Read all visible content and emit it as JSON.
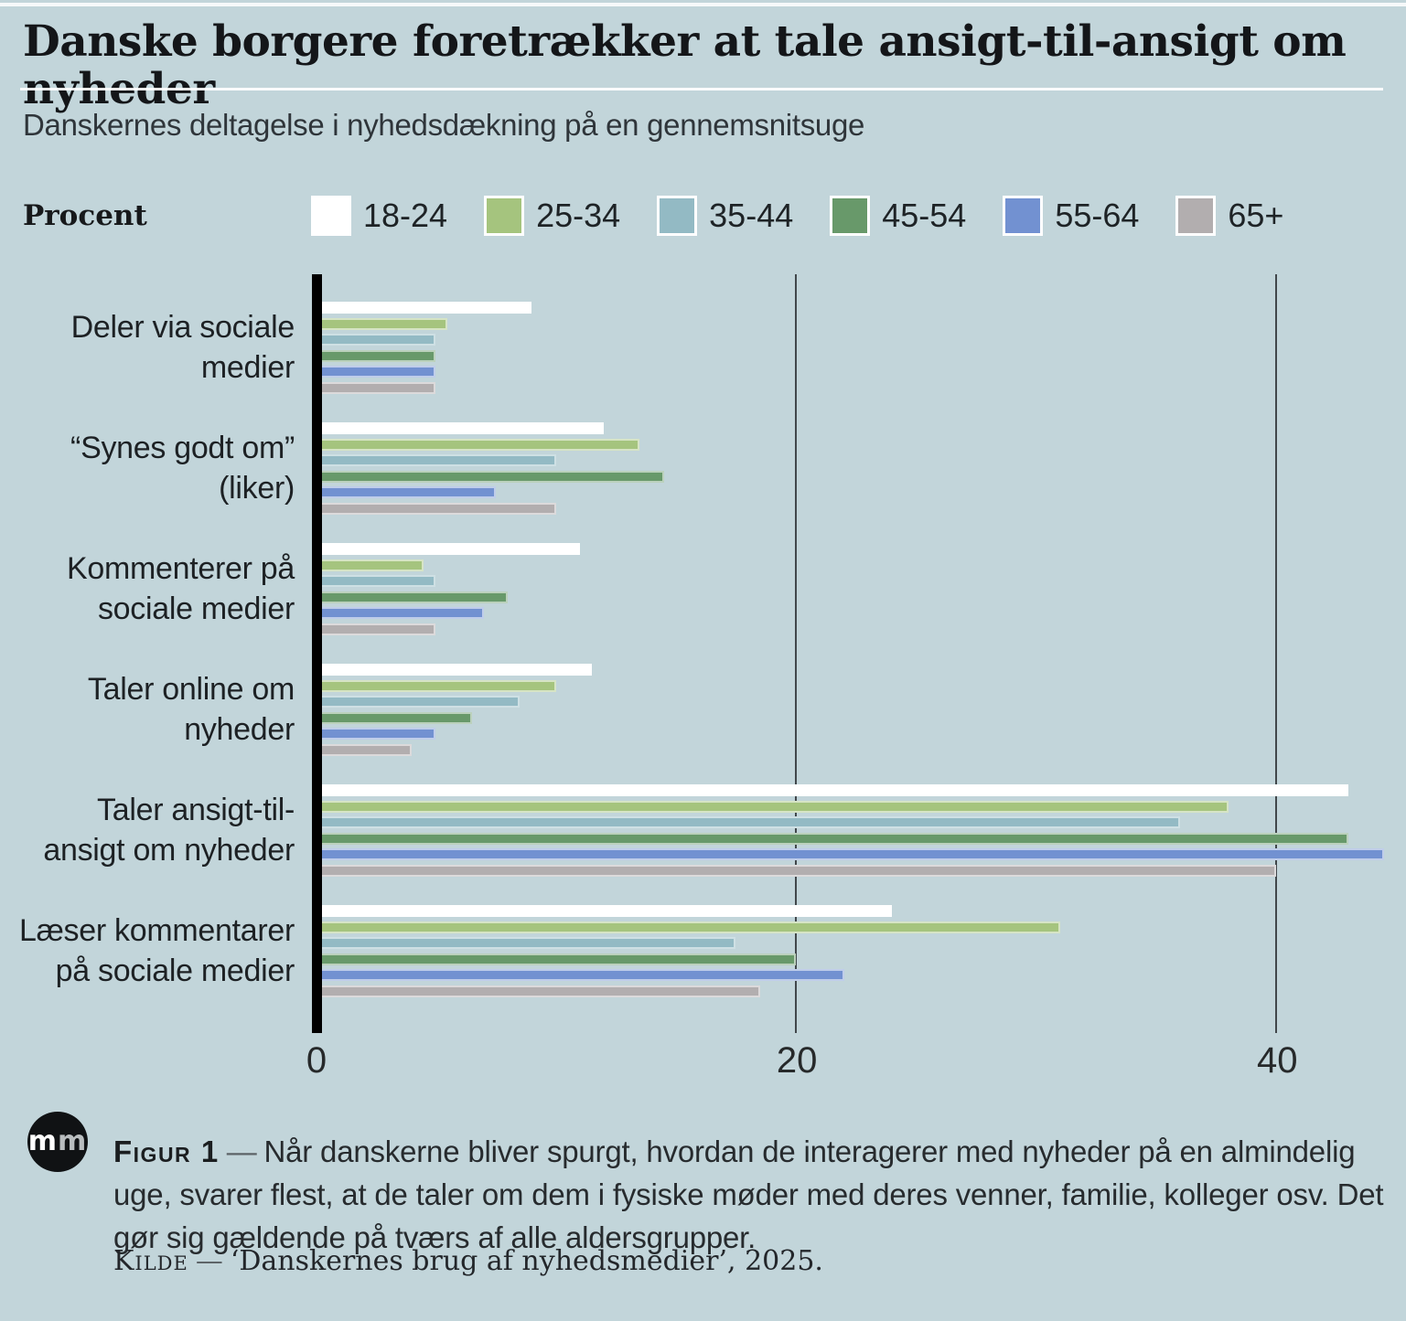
{
  "header": {
    "title": "Danske borgere foretrækker at tale ansigt-til-ansigt om nyheder",
    "subtitle": "Danskernes deltagelse i nyhedsdækning på en gennemsnitsuge"
  },
  "legend": {
    "label": "Procent",
    "groups": [
      {
        "label": "18-24",
        "color": "#ffffff"
      },
      {
        "label": "25-34",
        "color": "#a5c47e"
      },
      {
        "label": "35-44",
        "color": "#93bac4"
      },
      {
        "label": "45-54",
        "color": "#68996a"
      },
      {
        "label": "55-64",
        "color": "#7291d1"
      },
      {
        "label": "65+",
        "color": "#b2aeaf"
      }
    ]
  },
  "chart_data": {
    "type": "bar",
    "orientation": "horizontal",
    "unit": "percent",
    "title": "Danskernes deltagelse i nyhedsdækning på en gennemsnitsuge",
    "xlabel": "Procent",
    "ylabel": "",
    "xlim": [
      0,
      45.4
    ],
    "xticks": [
      0,
      20,
      40
    ],
    "grid": "vertical",
    "legend_position": "top",
    "categories": [
      [
        "Deler via sociale",
        "medier"
      ],
      [
        "“Synes godt om”",
        "(liker)"
      ],
      [
        "Kommenterer på",
        "sociale medier"
      ],
      [
        "Taler online om",
        "nyheder"
      ],
      [
        "Taler ansigt-til-",
        "ansigt om nyheder"
      ],
      [
        "Læser kommentarer",
        "på sociale medier"
      ]
    ],
    "series": [
      {
        "name": "18-24",
        "color": "#ffffff",
        "values": [
          9,
          12,
          11,
          11.5,
          43,
          24
        ]
      },
      {
        "name": "25-34",
        "color": "#a5c47e",
        "values": [
          5.5,
          13.5,
          4.5,
          10,
          38,
          31
        ]
      },
      {
        "name": "35-44",
        "color": "#93bac4",
        "values": [
          5,
          10,
          5,
          8.5,
          36,
          17.5
        ]
      },
      {
        "name": "45-54",
        "color": "#68996a",
        "values": [
          5,
          14.5,
          8,
          6.5,
          43,
          20
        ]
      },
      {
        "name": "55-64",
        "color": "#7291d1",
        "values": [
          5,
          7.5,
          7,
          5,
          44.5,
          22
        ]
      },
      {
        "name": "65+",
        "color": "#b2aeaf",
        "values": [
          5,
          10,
          5,
          4,
          40,
          18.5
        ]
      }
    ]
  },
  "footer": {
    "logo_text_1": "m",
    "logo_text_2": "m",
    "figure_label": "Figur 1",
    "dash": "—",
    "caption": "Når danskerne bliver spurgt, hvordan de interagerer med nyheder på en almindelig uge, svarer flest, at de taler om dem i fysiske møder med deres venner, familie, kolleger osv. Det gør sig gældende på tværs af alle aldersgrupper.",
    "source_label": "Kilde",
    "source_text": "‘Danskernes brug af nyhedsmedier’, 2025."
  }
}
